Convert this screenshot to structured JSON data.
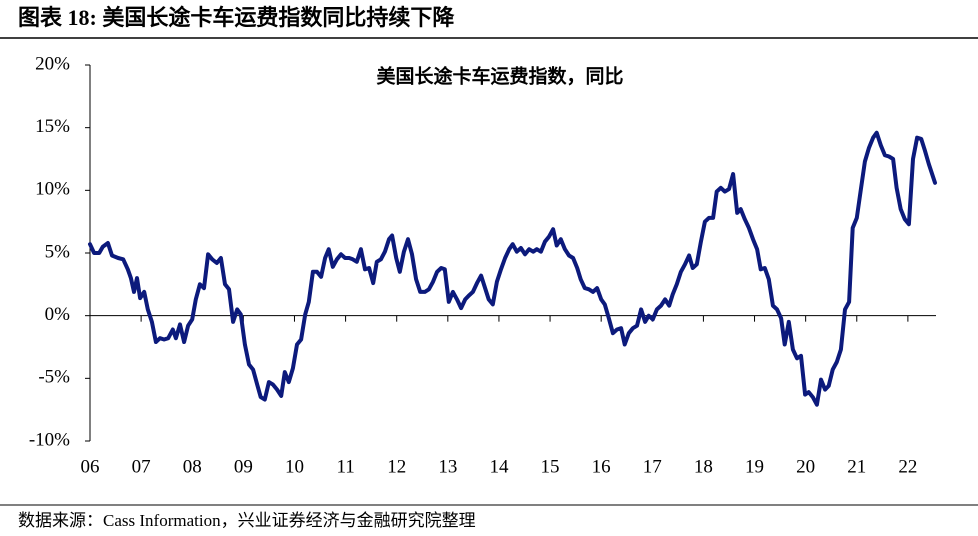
{
  "header": {
    "title": "图表 18: 美国长途卡车运费指数同比持续下降"
  },
  "source": "数据来源：Cass Information，兴业证券经济与金融研究院整理",
  "chart_data": {
    "type": "line",
    "title": "美国长途卡车运费指数，同比",
    "color": "#0c1a7c",
    "x": [
      6.0,
      6.08,
      6.18,
      6.25,
      6.35,
      6.43,
      6.55,
      6.65,
      6.74,
      6.8,
      6.86,
      6.92,
      6.98,
      7.06,
      7.13,
      7.21,
      7.29,
      7.37,
      7.45,
      7.53,
      7.62,
      7.68,
      7.76,
      7.84,
      7.92,
      8.0,
      8.07,
      8.15,
      8.23,
      8.31,
      8.39,
      8.48,
      8.56,
      8.64,
      8.72,
      8.8,
      8.88,
      8.95,
      9.03,
      9.11,
      9.19,
      9.27,
      9.34,
      9.42,
      9.5,
      9.58,
      9.66,
      9.74,
      9.81,
      9.89,
      9.97,
      10.05,
      10.13,
      10.21,
      10.28,
      10.36,
      10.44,
      10.52,
      10.6,
      10.67,
      10.75,
      10.83,
      10.91,
      10.99,
      11.07,
      11.14,
      11.22,
      11.3,
      11.38,
      11.46,
      11.54,
      11.61,
      11.69,
      11.77,
      11.85,
      11.91,
      11.99,
      12.06,
      12.14,
      12.22,
      12.3,
      12.38,
      12.46,
      12.55,
      12.63,
      12.71,
      12.79,
      12.87,
      12.94,
      13.02,
      13.1,
      13.18,
      13.26,
      13.34,
      13.41,
      13.49,
      13.57,
      13.65,
      13.73,
      13.8,
      13.88,
      13.96,
      14.04,
      14.12,
      14.2,
      14.27,
      14.35,
      14.43,
      14.51,
      14.59,
      14.67,
      14.74,
      14.82,
      14.9,
      14.98,
      15.06,
      15.13,
      15.21,
      15.29,
      15.37,
      15.45,
      15.53,
      15.6,
      15.68,
      15.76,
      15.84,
      15.92,
      16.0,
      16.07,
      16.15,
      16.23,
      16.31,
      16.39,
      16.46,
      16.54,
      16.62,
      16.7,
      16.78,
      16.86,
      16.93,
      17.01,
      17.09,
      17.17,
      17.25,
      17.33,
      17.4,
      17.48,
      17.56,
      17.64,
      17.72,
      17.79,
      17.87,
      17.95,
      18.03,
      18.11,
      18.19,
      18.26,
      18.34,
      18.42,
      18.5,
      18.58,
      18.66,
      18.73,
      18.81,
      18.89,
      18.97,
      19.05,
      19.12,
      19.2,
      19.28,
      19.36,
      19.44,
      19.52,
      19.59,
      19.67,
      19.75,
      19.83,
      19.91,
      19.99,
      20.06,
      20.14,
      20.22,
      20.3,
      20.38,
      20.45,
      20.53,
      20.61,
      20.69,
      20.77,
      20.85,
      20.92,
      21.0,
      21.08,
      21.16,
      21.24,
      21.32,
      21.39,
      21.47,
      21.55,
      21.63,
      21.71,
      21.78,
      21.86,
      21.94,
      22.02,
      22.1,
      22.18,
      22.26,
      22.33,
      22.41,
      22.53
    ],
    "values": [
      5.7,
      5.0,
      5.0,
      5.5,
      5.8,
      4.8,
      4.6,
      4.5,
      3.7,
      3.0,
      1.9,
      3.0,
      1.4,
      1.9,
      0.5,
      -0.5,
      -2.1,
      -1.8,
      -1.9,
      -1.8,
      -1.1,
      -1.8,
      -0.7,
      -2.1,
      -0.8,
      -0.3,
      1.3,
      2.5,
      2.2,
      4.9,
      4.5,
      4.2,
      4.6,
      2.5,
      2.1,
      -0.5,
      0.5,
      0.1,
      -2.3,
      -3.9,
      -4.3,
      -5.5,
      -6.5,
      -6.7,
      -5.3,
      -5.5,
      -5.9,
      -6.4,
      -4.5,
      -5.3,
      -4.2,
      -2.3,
      -1.9,
      0.1,
      1.1,
      3.5,
      3.5,
      3.1,
      4.6,
      5.3,
      3.9,
      4.5,
      4.9,
      4.6,
      4.6,
      4.5,
      4.3,
      5.3,
      3.7,
      3.8,
      2.6,
      4.3,
      4.5,
      5.1,
      6.1,
      6.4,
      4.6,
      3.5,
      5.1,
      6.1,
      4.9,
      2.9,
      1.9,
      1.9,
      2.1,
      2.7,
      3.5,
      3.8,
      3.7,
      1.1,
      1.9,
      1.3,
      0.6,
      1.3,
      1.6,
      1.9,
      2.6,
      3.2,
      2.2,
      1.3,
      0.9,
      2.7,
      3.7,
      4.6,
      5.3,
      5.7,
      5.1,
      5.4,
      4.9,
      5.3,
      5.1,
      5.3,
      5.1,
      5.9,
      6.3,
      6.9,
      5.6,
      6.1,
      5.3,
      4.8,
      4.6,
      3.8,
      2.9,
      2.2,
      2.1,
      1.9,
      2.2,
      1.3,
      0.9,
      -0.2,
      -1.4,
      -1.1,
      -1.0,
      -2.3,
      -1.4,
      -1.0,
      -0.8,
      0.5,
      -0.5,
      0,
      -0.3,
      0.5,
      0.8,
      1.3,
      0.8,
      1.7,
      2.5,
      3.5,
      4.1,
      4.8,
      3.8,
      4.1,
      5.9,
      7.5,
      7.8,
      7.8,
      9.9,
      10.2,
      9.9,
      10.1,
      11.3,
      8.2,
      8.5,
      7.7,
      7.0,
      6.1,
      5.3,
      3.7,
      3.8,
      2.9,
      0.8,
      0.5,
      -0.2,
      -2.3,
      -0.5,
      -2.7,
      -3.4,
      -3.2,
      -6.3,
      -6.1,
      -6.5,
      -7.1,
      -5.1,
      -5.9,
      -5.6,
      -4.3,
      -3.7,
      -2.7,
      0.5,
      1.1,
      7.0,
      7.8,
      10.1,
      12.3,
      13.4,
      14.2,
      14.6,
      13.6,
      12.8,
      12.7,
      12.5,
      10.2,
      8.5,
      7.7,
      7.3,
      12.5,
      14.2,
      14.1,
      13.2,
      12.1,
      10.6
    ],
    "xlim": [
      6,
      22.55
    ],
    "xticks": [
      {
        "value": 6,
        "label": "06"
      },
      {
        "value": 7,
        "label": "07"
      },
      {
        "value": 8,
        "label": "08"
      },
      {
        "value": 9,
        "label": "09"
      },
      {
        "value": 10,
        "label": "10"
      },
      {
        "value": 11,
        "label": "11"
      },
      {
        "value": 12,
        "label": "12"
      },
      {
        "value": 13,
        "label": "13"
      },
      {
        "value": 14,
        "label": "14"
      },
      {
        "value": 15,
        "label": "15"
      },
      {
        "value": 16,
        "label": "16"
      },
      {
        "value": 17,
        "label": "17"
      },
      {
        "value": 18,
        "label": "18"
      },
      {
        "value": 19,
        "label": "19"
      },
      {
        "value": 20,
        "label": "20"
      },
      {
        "value": 21,
        "label": "21"
      },
      {
        "value": 22,
        "label": "22"
      }
    ],
    "ylim": [
      -10,
      20
    ],
    "yticks": [
      {
        "value": -10,
        "label": "-10%"
      },
      {
        "value": -5,
        "label": "-5%"
      },
      {
        "value": 0,
        "label": "0%"
      },
      {
        "value": 5,
        "label": "5%"
      },
      {
        "value": 10,
        "label": "10%"
      },
      {
        "value": 15,
        "label": "15%"
      },
      {
        "value": 20,
        "label": "20%"
      }
    ]
  }
}
